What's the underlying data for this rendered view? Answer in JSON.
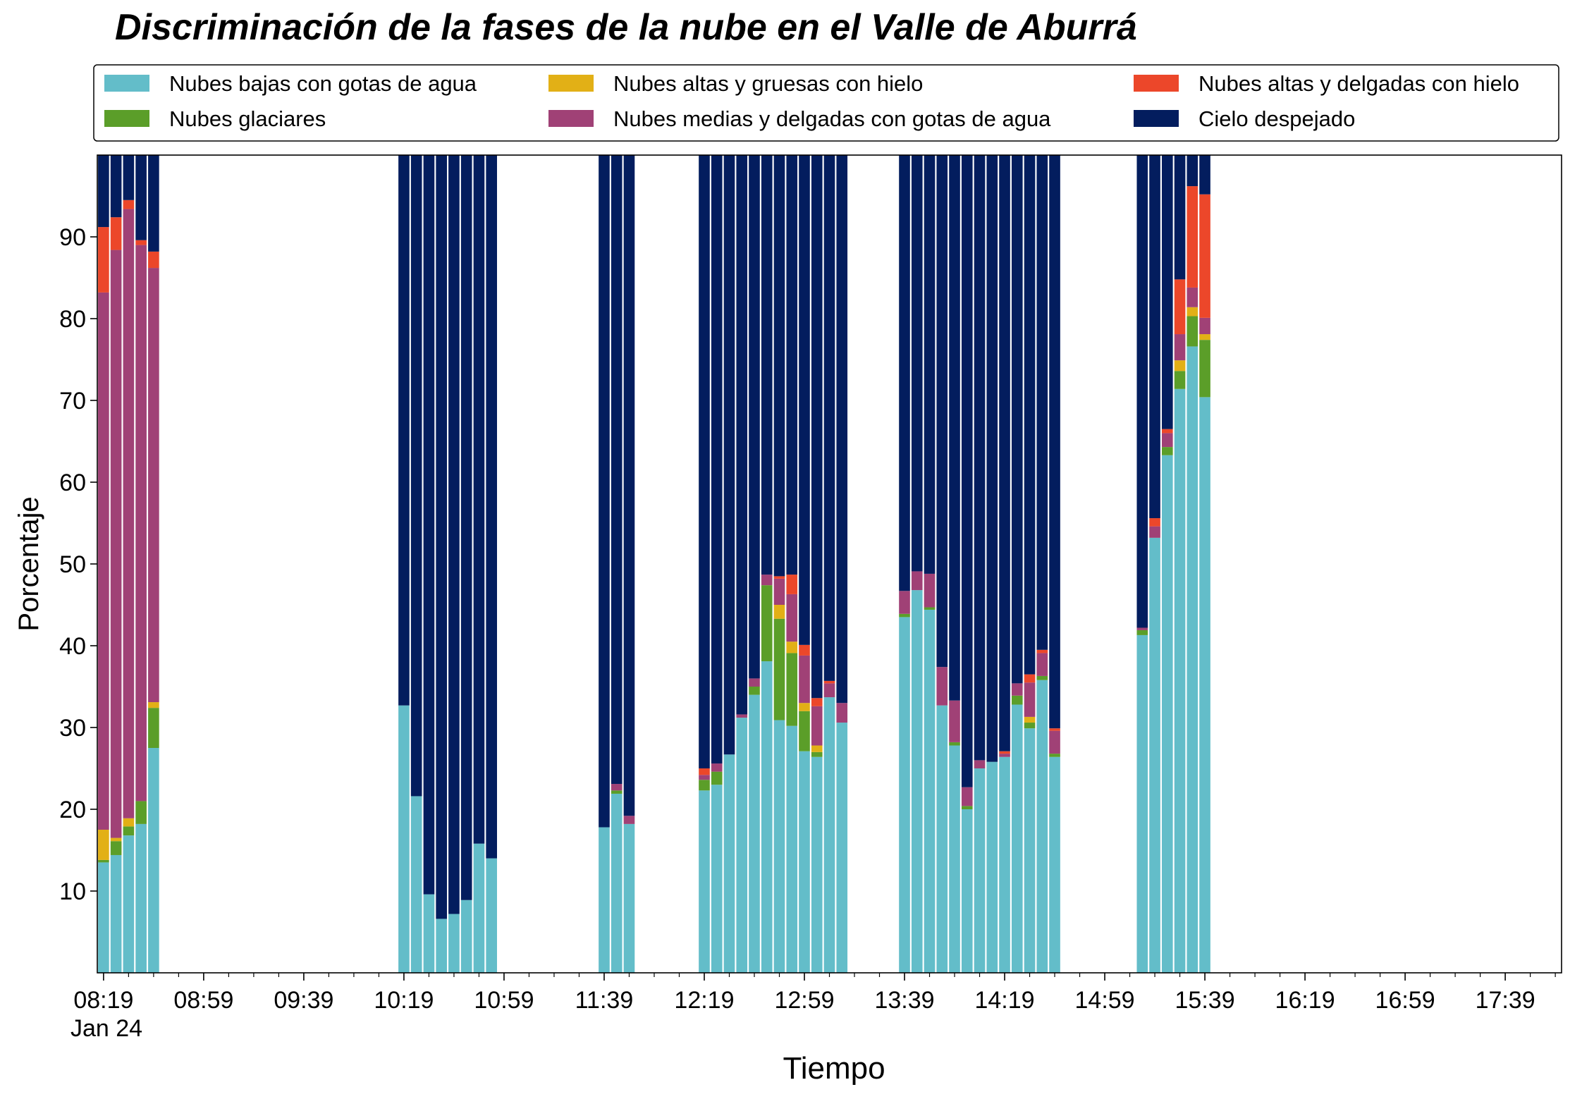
{
  "chart_data": {
    "type": "bar",
    "stacked": true,
    "title": "Discriminación de la fases de la nube en el Valle de Aburrá",
    "xlabel": "Tiempo",
    "ylabel": "Porcentaje",
    "ylim": [
      0,
      100
    ],
    "yticks": [
      10,
      20,
      30,
      40,
      50,
      60,
      70,
      80,
      90
    ],
    "x_interval_minutes": 5,
    "x_start": "08:19",
    "x_end": "17:59",
    "xticks_major": [
      "08:19",
      "08:59",
      "09:39",
      "10:19",
      "10:59",
      "11:39",
      "12:19",
      "12:59",
      "13:39",
      "14:19",
      "14:59",
      "15:39",
      "16:19",
      "16:59",
      "17:39"
    ],
    "xtick_sublabel": "Jan 24",
    "legend_position": "top",
    "legend_columns": 3,
    "legend_entries": [
      {
        "name": "Nubes bajas con gotas de agua",
        "color": "#63bdc9"
      },
      {
        "name": "Nubes glaciares",
        "color": "#5b9e29"
      },
      {
        "name": "Nubes altas y gruesas con hielo",
        "color": "#e2b016"
      },
      {
        "name": "Nubes medias y delgadas con gotas de agua",
        "color": "#a04176"
      },
      {
        "name": "Nubes altas y delgadas con hielo",
        "color": "#ec472a"
      },
      {
        "name": "Cielo despejado",
        "color": "#031d5e"
      }
    ],
    "categories": [
      "08:19",
      "08:24",
      "08:29",
      "08:34",
      "08:39",
      "08:44",
      "08:49",
      "08:54",
      "08:59",
      "09:04",
      "09:09",
      "09:14",
      "09:19",
      "09:24",
      "09:29",
      "09:34",
      "09:39",
      "09:44",
      "09:49",
      "09:54",
      "09:59",
      "10:04",
      "10:09",
      "10:14",
      "10:19",
      "10:24",
      "10:29",
      "10:34",
      "10:39",
      "10:44",
      "10:49",
      "10:54",
      "10:59",
      "11:04",
      "11:09",
      "11:14",
      "11:19",
      "11:24",
      "11:29",
      "11:34",
      "11:39",
      "11:44",
      "11:49",
      "11:54",
      "11:59",
      "12:04",
      "12:09",
      "12:14",
      "12:19",
      "12:24",
      "12:29",
      "12:34",
      "12:39",
      "12:44",
      "12:49",
      "12:54",
      "12:59",
      "13:04",
      "13:09",
      "13:14",
      "13:19",
      "13:24",
      "13:29",
      "13:34",
      "13:39",
      "13:44",
      "13:49",
      "13:54",
      "13:59",
      "14:04",
      "14:09",
      "14:14",
      "14:19",
      "14:24",
      "14:29",
      "14:34",
      "14:39",
      "14:44",
      "14:49",
      "14:54",
      "14:59",
      "15:04",
      "15:09",
      "15:14",
      "15:19",
      "15:24",
      "15:29",
      "15:34",
      "15:39",
      "15:44",
      "15:49",
      "15:54",
      "15:59",
      "16:04",
      "16:09",
      "16:14",
      "16:19",
      "16:24",
      "16:29",
      "16:34",
      "16:39",
      "16:44",
      "16:49",
      "16:54",
      "16:59",
      "17:04",
      "17:09",
      "17:14",
      "17:19",
      "17:24",
      "17:29",
      "17:34",
      "17:39",
      "17:44",
      "17:49",
      "17:54",
      "17:59"
    ],
    "bars": [
      {
        "time": "08:19",
        "values": [
          13.5,
          0.3,
          3.7,
          65.7,
          8.0,
          8.8
        ]
      },
      {
        "time": "08:24",
        "values": [
          14.4,
          1.7,
          0.4,
          71.9,
          4.0,
          7.6
        ]
      },
      {
        "time": "08:29",
        "values": [
          16.8,
          1.1,
          1.0,
          74.5,
          1.1,
          5.5
        ]
      },
      {
        "time": "08:34",
        "values": [
          18.2,
          2.8,
          0.0,
          68.0,
          0.6,
          10.4
        ]
      },
      {
        "time": "08:39",
        "values": [
          27.5,
          4.9,
          0.7,
          53.1,
          2.0,
          11.8
        ]
      },
      {
        "time": "10:19",
        "values": [
          32.7,
          0.0,
          0.0,
          0.0,
          0.0,
          67.3
        ]
      },
      {
        "time": "10:24",
        "values": [
          21.6,
          0.0,
          0.0,
          0.0,
          0.0,
          78.4
        ]
      },
      {
        "time": "10:29",
        "values": [
          9.6,
          0.0,
          0.0,
          0.0,
          0.0,
          90.4
        ]
      },
      {
        "time": "10:34",
        "values": [
          6.6,
          0.0,
          0.0,
          0.0,
          0.0,
          93.4
        ]
      },
      {
        "time": "10:39",
        "values": [
          7.2,
          0.0,
          0.0,
          0.0,
          0.0,
          92.8
        ]
      },
      {
        "time": "10:44",
        "values": [
          8.9,
          0.0,
          0.0,
          0.0,
          0.0,
          91.1
        ]
      },
      {
        "time": "10:49",
        "values": [
          15.8,
          0.0,
          0.0,
          0.0,
          0.0,
          84.2
        ]
      },
      {
        "time": "10:54",
        "values": [
          14.0,
          0.0,
          0.0,
          0.0,
          0.0,
          86.0
        ]
      },
      {
        "time": "11:39",
        "values": [
          17.8,
          0.0,
          0.0,
          0.0,
          0.0,
          82.2
        ]
      },
      {
        "time": "11:44",
        "values": [
          21.9,
          0.4,
          0.0,
          0.8,
          0.0,
          76.9
        ]
      },
      {
        "time": "11:49",
        "values": [
          18.2,
          0.0,
          0.0,
          1.0,
          0.0,
          80.8
        ]
      },
      {
        "time": "12:19",
        "values": [
          22.3,
          1.3,
          0.0,
          0.6,
          0.8,
          75.0
        ]
      },
      {
        "time": "12:24",
        "values": [
          23.0,
          1.6,
          0.0,
          1.0,
          0.0,
          74.4
        ]
      },
      {
        "time": "12:29",
        "values": [
          26.7,
          0.0,
          0.0,
          0.0,
          0.0,
          73.3
        ]
      },
      {
        "time": "12:34",
        "values": [
          31.2,
          0.0,
          0.0,
          0.4,
          0.0,
          68.4
        ]
      },
      {
        "time": "12:39",
        "values": [
          34.0,
          1.0,
          0.0,
          1.0,
          0.0,
          64.0
        ]
      },
      {
        "time": "12:44",
        "values": [
          38.1,
          9.3,
          0.0,
          1.3,
          0.0,
          51.3
        ]
      },
      {
        "time": "12:49",
        "values": [
          30.9,
          12.4,
          1.7,
          3.2,
          0.3,
          51.5
        ]
      },
      {
        "time": "12:54",
        "values": [
          30.2,
          8.9,
          1.4,
          5.8,
          2.4,
          51.3
        ]
      },
      {
        "time": "12:59",
        "values": [
          27.1,
          4.9,
          1.0,
          5.8,
          1.3,
          59.9
        ]
      },
      {
        "time": "13:04",
        "values": [
          26.4,
          0.6,
          0.8,
          4.8,
          1.0,
          66.4
        ]
      },
      {
        "time": "13:09",
        "values": [
          33.7,
          0.0,
          0.0,
          1.7,
          0.3,
          64.3
        ]
      },
      {
        "time": "13:14",
        "values": [
          30.6,
          0.0,
          0.0,
          2.4,
          0.0,
          67.0
        ]
      },
      {
        "time": "13:39",
        "values": [
          43.5,
          0.4,
          0.0,
          2.8,
          0.0,
          53.3
        ]
      },
      {
        "time": "13:44",
        "values": [
          46.8,
          0.0,
          0.0,
          2.3,
          0.0,
          50.9
        ]
      },
      {
        "time": "13:49",
        "values": [
          44.4,
          0.3,
          0.0,
          4.1,
          0.0,
          51.2
        ]
      },
      {
        "time": "13:54",
        "values": [
          32.7,
          0.0,
          0.0,
          4.7,
          0.0,
          62.6
        ]
      },
      {
        "time": "13:59",
        "values": [
          27.8,
          0.4,
          0.0,
          5.1,
          0.0,
          66.7
        ]
      },
      {
        "time": "14:04",
        "values": [
          20.0,
          0.4,
          0.0,
          2.3,
          0.0,
          77.3
        ]
      },
      {
        "time": "14:09",
        "values": [
          25.0,
          0.0,
          0.0,
          1.0,
          0.0,
          74.0
        ]
      },
      {
        "time": "14:14",
        "values": [
          25.8,
          0.0,
          0.0,
          0.0,
          0.0,
          74.2
        ]
      },
      {
        "time": "14:19",
        "values": [
          26.4,
          0.0,
          0.0,
          0.4,
          0.3,
          72.9
        ]
      },
      {
        "time": "14:24",
        "values": [
          32.8,
          1.1,
          0.0,
          1.5,
          0.0,
          64.6
        ]
      },
      {
        "time": "14:29",
        "values": [
          29.9,
          0.7,
          0.7,
          4.2,
          1.0,
          63.5
        ]
      },
      {
        "time": "14:34",
        "values": [
          35.8,
          0.5,
          0.0,
          2.8,
          0.4,
          60.5
        ]
      },
      {
        "time": "14:39",
        "values": [
          26.4,
          0.4,
          0.0,
          2.8,
          0.3,
          70.1
        ]
      },
      {
        "time": "15:14",
        "values": [
          41.3,
          0.6,
          0.0,
          0.3,
          0.0,
          57.8
        ]
      },
      {
        "time": "15:19",
        "values": [
          53.2,
          0.0,
          0.0,
          1.4,
          1.0,
          44.4
        ]
      },
      {
        "time": "15:24",
        "values": [
          63.3,
          1.0,
          0.0,
          1.7,
          0.5,
          33.5
        ]
      },
      {
        "time": "15:29",
        "values": [
          71.4,
          2.2,
          1.3,
          3.2,
          6.7,
          15.2
        ]
      },
      {
        "time": "15:34",
        "values": [
          76.6,
          3.7,
          1.1,
          2.4,
          12.4,
          3.8
        ]
      },
      {
        "time": "15:39",
        "values": [
          70.4,
          7.0,
          0.7,
          2.0,
          15.1,
          4.8
        ]
      }
    ]
  }
}
